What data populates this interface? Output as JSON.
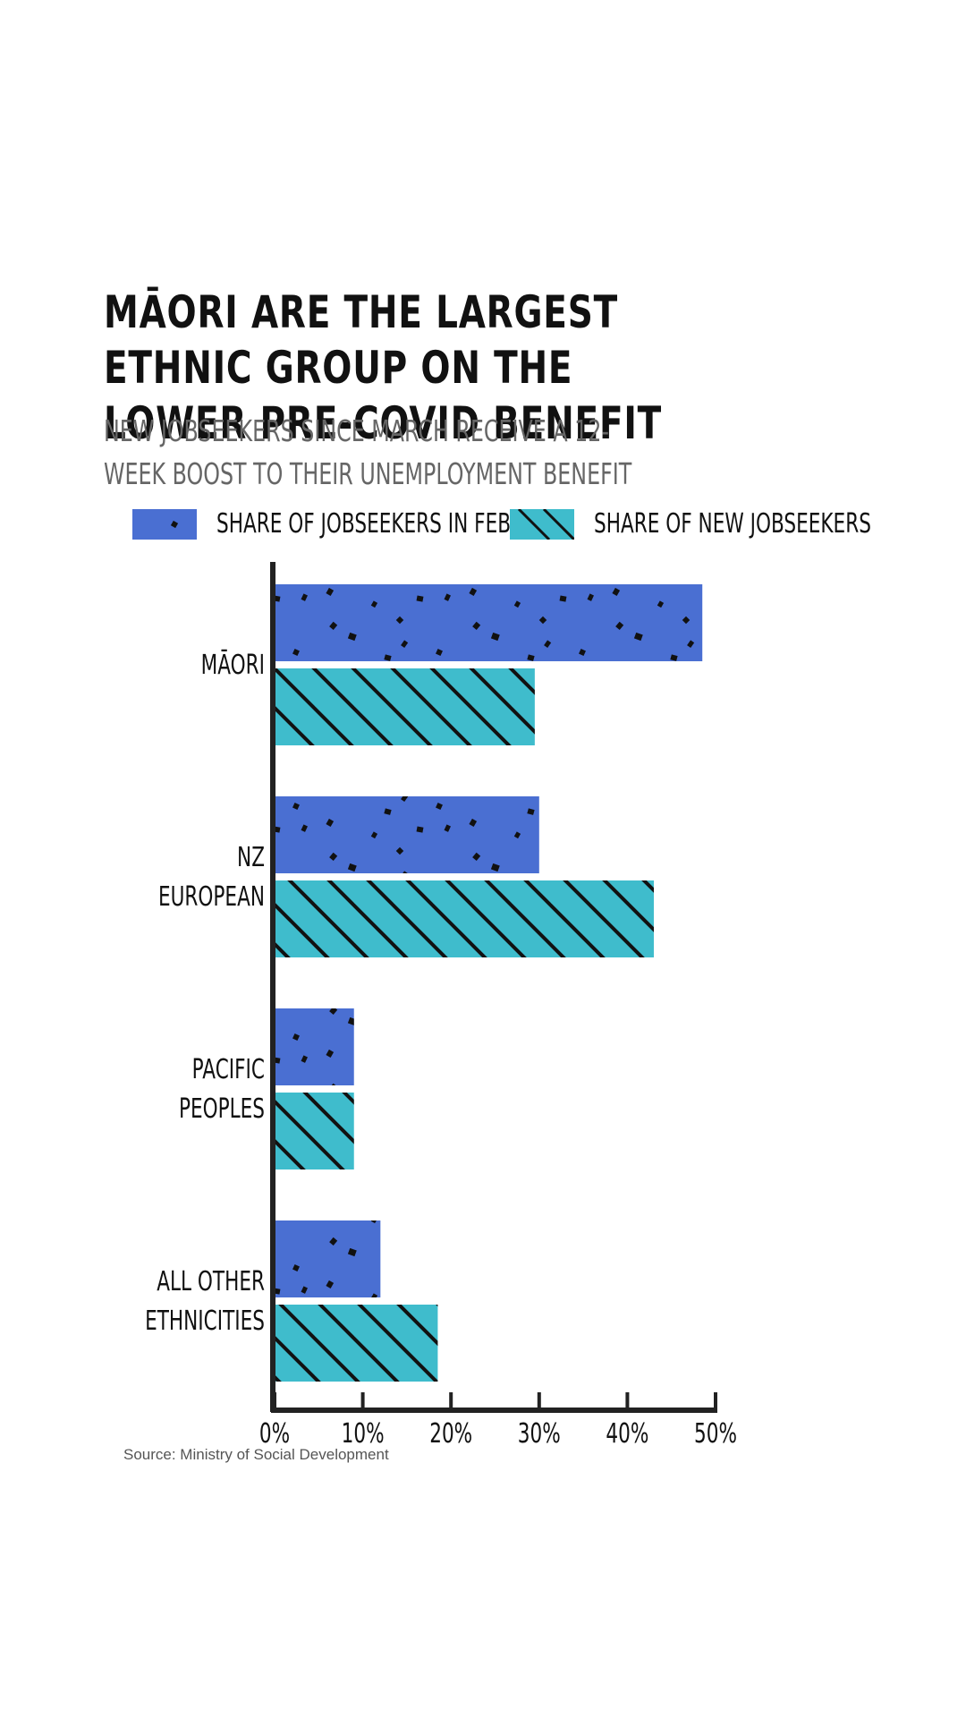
{
  "title": "MĀORI ARE THE LARGEST ETHNIC GROUP ON THE LOWER PRE-COVID BENEFIT",
  "subtitle": "NEW JOBSEEKERS SINCE MARCH RECEIVE A 12-WEEK BOOST TO THEIR UNEMPLOYMENT BENEFIT",
  "source": "Source: Ministry of Social Development",
  "colors": {
    "feb": "#4a6fd2",
    "new": "#3fbccc",
    "pattern": "#111111",
    "axis": "#222222"
  },
  "chart_data": {
    "type": "bar",
    "orientation": "horizontal",
    "categories": [
      "MĀORI",
      "NZ EUROPEAN",
      "PACIFIC PEOPLES",
      "ALL OTHER ETHNICITIES"
    ],
    "series": [
      {
        "name": "SHARE OF JOBSEEKERS IN FEB",
        "values": [
          48.5,
          30,
          9,
          12
        ],
        "pattern": "dots"
      },
      {
        "name": "SHARE OF NEW JOBSEEKERS",
        "values": [
          29.5,
          43,
          9,
          18.5
        ],
        "pattern": "hatch"
      }
    ],
    "x_ticks": [
      "0%",
      "10%",
      "20%",
      "30%",
      "40%",
      "50%"
    ],
    "xlim": [
      0,
      50
    ],
    "grid": false,
    "legend_position": "top"
  }
}
